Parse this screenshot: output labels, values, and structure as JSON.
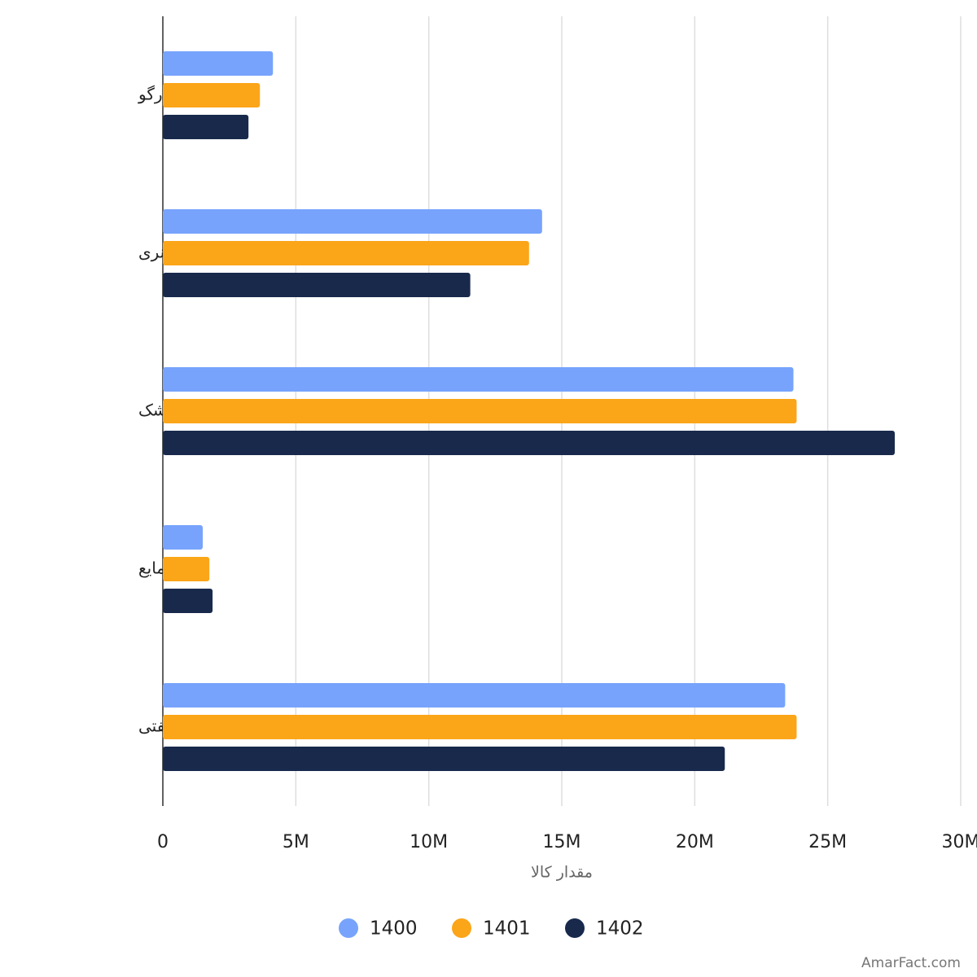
{
  "chart_data": {
    "type": "bar",
    "orientation": "horizontal",
    "categories": [
      "جنرال کارگو",
      "کالای کانتینری",
      "فله خشک",
      "فله مایع",
      "فرآورده های نفتی"
    ],
    "series": [
      {
        "name": "1400",
        "color": "#77a3fc",
        "values": [
          4140000,
          14260000,
          23710000,
          1500000,
          23400000
        ]
      },
      {
        "name": "1401",
        "color": "#fba518",
        "values": [
          3650000,
          13770000,
          23830000,
          1750000,
          23830000
        ]
      },
      {
        "name": "1402",
        "color": "#18294c",
        "values": [
          3220000,
          11560000,
          27520000,
          1870000,
          21130000
        ]
      }
    ],
    "xlabel": "مقدار کالا",
    "xlim": [
      0,
      30000000
    ],
    "xticks": [
      0,
      {
        "value": 5000000,
        "label": "5M"
      },
      {
        "value": 10000000,
        "label": "10M"
      },
      {
        "value": 15000000,
        "label": "15M"
      },
      {
        "value": 20000000,
        "label": "20M"
      },
      {
        "value": 25000000,
        "label": "25M"
      },
      {
        "value": 30000000,
        "label": "30M"
      }
    ],
    "grid": true,
    "legend": "bottom",
    "watermark": "AmarFact.com"
  }
}
